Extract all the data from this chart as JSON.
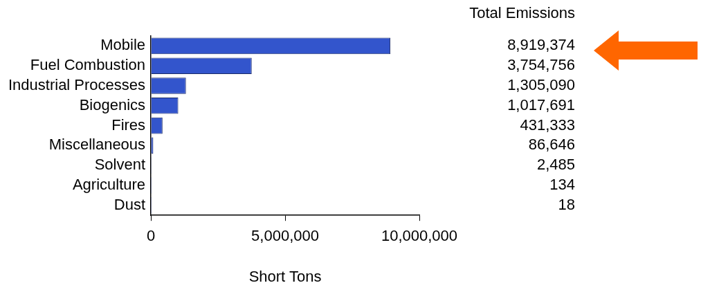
{
  "chart_data": {
    "type": "bar",
    "orientation": "horizontal",
    "categories": [
      "Mobile",
      "Fuel Combustion",
      "Industrial Processes",
      "Biogenics",
      "Fires",
      "Miscellaneous",
      "Solvent",
      "Agriculture",
      "Dust"
    ],
    "values": [
      8919374,
      3754756,
      1305090,
      1017691,
      431333,
      86646,
      2485,
      134,
      18
    ],
    "color": "#3355cc",
    "xlim": [
      0,
      10000000
    ],
    "xticks": [
      0,
      {
        "value": 5000000,
        "label": "5,000,000"
      },
      {
        "value": 10000000,
        "label": "10,000,000"
      }
    ],
    "xlabel": "Short Tons",
    "value_labels": [
      "8,919,374",
      "3,754,756",
      "1,305,090",
      "1,017,691",
      "431,333",
      "86,646",
      "2,485",
      "134",
      "18"
    ],
    "annotations": [
      "Total Emissions"
    ],
    "grid": false,
    "legend": false
  }
}
